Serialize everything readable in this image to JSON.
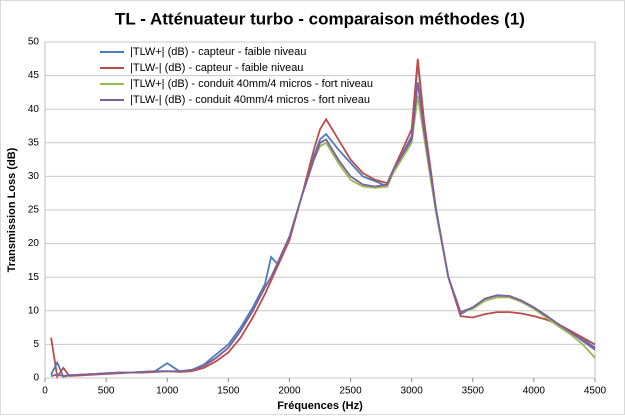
{
  "chart_data": {
    "type": "line",
    "title": "TL - Atténuateur turbo - comparaison méthodes (1)",
    "x_label": "Fréquences (Hz)",
    "y_label": "Transmission Loss (dB)",
    "x": [
      50,
      100,
      150,
      200,
      300,
      400,
      500,
      600,
      700,
      800,
      900,
      1000,
      1100,
      1200,
      1300,
      1400,
      1500,
      1600,
      1700,
      1800,
      1850,
      1900,
      2000,
      2100,
      2200,
      2250,
      2300,
      2400,
      2500,
      2600,
      2700,
      2800,
      2850,
      2900,
      3000,
      3050,
      3100,
      3200,
      3300,
      3400,
      3500,
      3600,
      3700,
      3800,
      3900,
      4000,
      4100,
      4200,
      4300,
      4400,
      4500
    ],
    "series": [
      {
        "name": "|TLW+| (dB) - capteur - faible niveau",
        "color": "#4a7ebb",
        "values": [
          0.5,
          2.3,
          0.2,
          0.4,
          0.5,
          0.6,
          0.7,
          0.8,
          0.8,
          0.9,
          1.0,
          2.2,
          1.0,
          1.2,
          2.0,
          3.5,
          5.0,
          7.5,
          10.5,
          14.0,
          18.0,
          17.0,
          21.0,
          27.0,
          33.0,
          35.5,
          36.3,
          34.0,
          32.0,
          30.0,
          29.3,
          28.5,
          31.0,
          32.5,
          36.0,
          47.0,
          38.0,
          25.0,
          15.0,
          9.5,
          10.5,
          11.8,
          12.3,
          12.2,
          11.5,
          10.5,
          9.3,
          8.0,
          7.0,
          5.8,
          4.5
        ]
      },
      {
        "name": "|TLW-| (dB) - capteur - faible niveau",
        "color": "#be4b48",
        "values": [
          6.0,
          0.2,
          1.5,
          0.3,
          0.4,
          0.5,
          0.6,
          0.7,
          0.8,
          0.8,
          0.9,
          1.0,
          0.9,
          1.0,
          1.5,
          2.5,
          3.8,
          6.0,
          9.0,
          12.5,
          14.5,
          16.5,
          20.5,
          27.0,
          34.0,
          37.0,
          38.5,
          35.5,
          32.5,
          30.5,
          29.5,
          29.0,
          31.0,
          33.0,
          37.0,
          47.5,
          38.5,
          25.0,
          15.0,
          9.2,
          9.0,
          9.5,
          9.8,
          9.8,
          9.6,
          9.2,
          8.7,
          8.0,
          7.0,
          6.0,
          5.0
        ]
      },
      {
        "name": "|TLW+| (dB) - conduit 40mm/4 micros - fort niveau",
        "color": "#98b954",
        "values": [
          0.3,
          0.5,
          0.3,
          0.4,
          0.5,
          0.6,
          0.7,
          0.8,
          0.8,
          0.9,
          1.0,
          1.0,
          1.0,
          1.2,
          1.8,
          3.0,
          4.5,
          7.0,
          10.0,
          13.5,
          15.0,
          17.0,
          21.0,
          27.0,
          32.5,
          34.5,
          35.0,
          32.0,
          29.5,
          28.5,
          28.3,
          28.5,
          30.5,
          32.0,
          35.0,
          42.0,
          36.0,
          24.5,
          15.0,
          9.8,
          10.3,
          11.5,
          12.0,
          12.0,
          11.3,
          10.3,
          9.0,
          7.7,
          6.5,
          5.0,
          3.0
        ]
      },
      {
        "name": "|TLW-| (dB) - conduit 40mm/4 micros - fort niveau",
        "color": "#7d60a0",
        "values": [
          0.3,
          0.5,
          0.3,
          0.4,
          0.5,
          0.6,
          0.7,
          0.8,
          0.8,
          0.9,
          1.0,
          1.0,
          1.0,
          1.2,
          1.8,
          3.0,
          4.5,
          7.0,
          10.0,
          13.5,
          15.0,
          17.0,
          21.0,
          27.0,
          32.5,
          35.0,
          35.5,
          32.5,
          30.0,
          28.8,
          28.5,
          28.8,
          31.0,
          32.5,
          35.5,
          44.0,
          37.0,
          25.0,
          15.0,
          9.8,
          10.5,
          11.8,
          12.3,
          12.2,
          11.5,
          10.5,
          9.3,
          8.0,
          6.8,
          5.5,
          4.2
        ]
      }
    ],
    "xlim": [
      0,
      4500
    ],
    "xticks": [
      0,
      500,
      1000,
      1500,
      2000,
      2500,
      3000,
      3500,
      4000,
      4500
    ],
    "ylim": [
      0,
      50
    ],
    "yticks": [
      0,
      5,
      10,
      15,
      20,
      25,
      30,
      35,
      40,
      45,
      50
    ],
    "grid": true,
    "legend": "top-left"
  }
}
